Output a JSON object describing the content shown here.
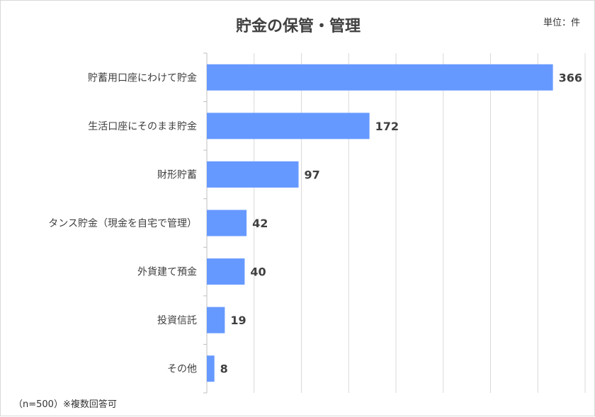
{
  "chart_data": {
    "type": "bar",
    "orientation": "horizontal",
    "title": "貯金の保管・管理",
    "unit_label": "単位：件",
    "footnote": "（n=500）※複数回答可",
    "categories": [
      "貯蓄用口座にわけて貯金",
      "生活口座にそのまま貯金",
      "財形貯蓄",
      "タンス貯金（現金を自宅で管理）",
      "外貨建て預金",
      "投資信託",
      "その他"
    ],
    "values": [
      366,
      172,
      97,
      42,
      40,
      19,
      8
    ],
    "xlim": [
      0,
      400
    ],
    "grid": true,
    "bar_color": "#6699ff",
    "grid_color": "#d9d9d9"
  }
}
